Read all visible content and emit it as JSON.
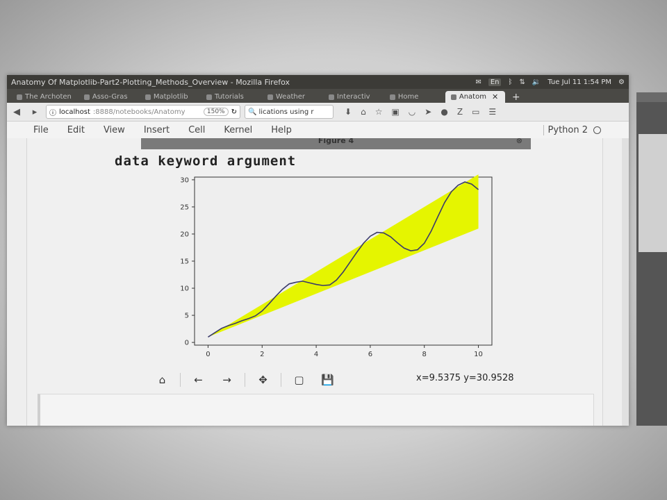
{
  "window": {
    "title": "Anatomy Of Matplotlib-Part2-Plotting_Methods_Overview - Mozilla Firefox",
    "tray": {
      "lang": "En",
      "clock": "Tue Jul 11 1:54 PM"
    }
  },
  "tabs": [
    {
      "label": "The Archoten",
      "active": false
    },
    {
      "label": "Asso-Gras",
      "active": false
    },
    {
      "label": "Matplotlib",
      "active": false
    },
    {
      "label": "Tutorials",
      "active": false
    },
    {
      "label": "Weather",
      "active": false
    },
    {
      "label": "Interactiv",
      "active": false
    },
    {
      "label": "Home",
      "active": false
    },
    {
      "label": "Anatom",
      "active": true
    }
  ],
  "navbar": {
    "url_host": "localhost",
    "url_path": ":8888/notebooks/Anatomy",
    "zoom": "150%",
    "search_text": "lications using r"
  },
  "menu": [
    "File",
    "Edit",
    "View",
    "Insert",
    "Cell",
    "Kernel",
    "Help"
  ],
  "kernel_name": "Python 2",
  "figure": {
    "header": "Figure 4"
  },
  "chart_data": {
    "type": "area",
    "x_ticks": [
      0,
      2,
      4,
      6,
      8,
      10
    ],
    "y_ticks": [
      0,
      5,
      10,
      15,
      20,
      25,
      30
    ],
    "xlim": [
      -0.5,
      10.5
    ],
    "ylim": [
      -0.5,
      30.5
    ],
    "grid": false,
    "fill_color": "#e5f500",
    "line_color": "#3a3a6a",
    "fill_between": {
      "x": [
        0,
        10
      ],
      "lower": [
        1,
        21
      ],
      "upper": [
        1,
        31
      ]
    },
    "line_points": {
      "x": [
        0,
        0.25,
        0.5,
        0.75,
        1,
        1.25,
        1.5,
        1.75,
        2,
        2.25,
        2.5,
        2.75,
        3,
        3.25,
        3.5,
        3.75,
        4,
        4.25,
        4.5,
        4.75,
        5,
        5.25,
        5.5,
        5.75,
        6,
        6.25,
        6.5,
        6.75,
        7,
        7.25,
        7.5,
        7.75,
        8,
        8.25,
        8.5,
        8.75,
        9,
        9.25,
        9.5,
        9.75,
        10
      ],
      "y": [
        1.0,
        1.8,
        2.6,
        3.1,
        3.5,
        4.0,
        4.4,
        4.9,
        5.8,
        7.1,
        8.5,
        9.8,
        10.8,
        11.1,
        11.3,
        11.0,
        10.7,
        10.5,
        10.6,
        11.5,
        13.0,
        14.8,
        16.6,
        18.3,
        19.6,
        20.3,
        20.2,
        19.5,
        18.4,
        17.4,
        16.9,
        17.1,
        18.3,
        20.5,
        23.2,
        25.8,
        27.8,
        29.0,
        29.6,
        29.2,
        28.2
      ]
    }
  },
  "toolbar": {
    "home": "home-icon",
    "back": "arrow-left-icon",
    "forward": "arrow-right-icon",
    "pan": "move-icon",
    "zoom": "rectangle-zoom-icon",
    "save": "save-icon"
  },
  "coords_text": "x=9.5375 y=30.9528",
  "markdown_title": "data keyword argument"
}
